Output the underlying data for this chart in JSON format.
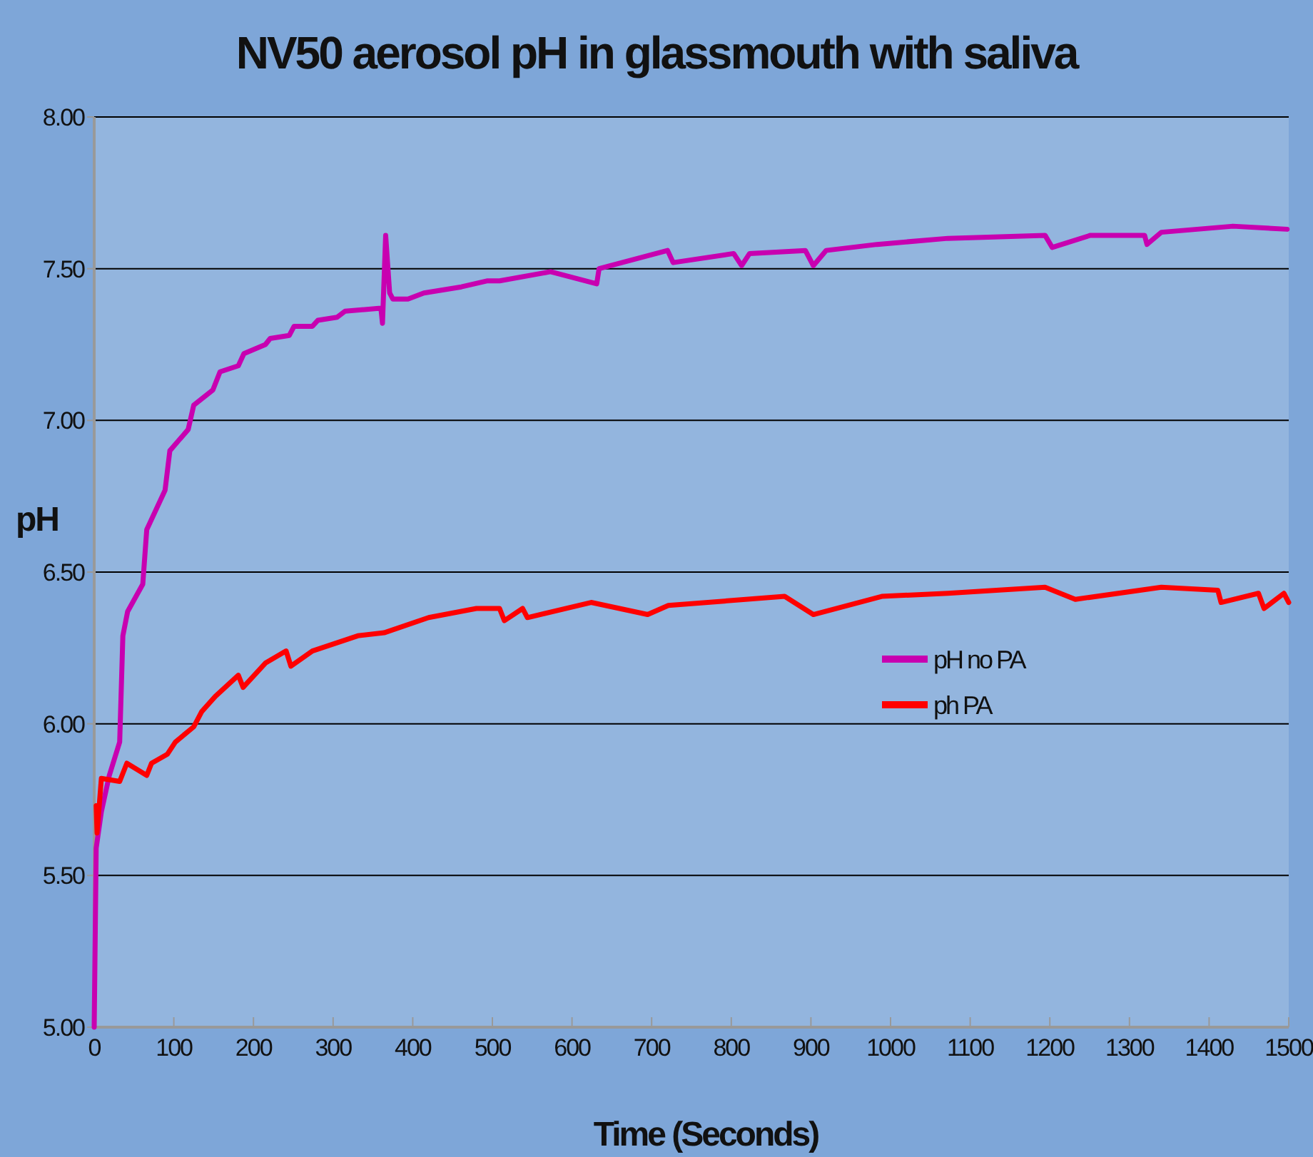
{
  "chart_data": {
    "type": "line",
    "title": "NV50 aerosol pH in glassmouth with saliva",
    "xlabel": "Time (Seconds)",
    "ylabel": "pH",
    "xlim": [
      0,
      1500
    ],
    "xticks": [
      0,
      100,
      200,
      300,
      400,
      500,
      600,
      700,
      800,
      900,
      1000,
      1100,
      1200,
      1300,
      1400,
      1500
    ],
    "ylim": [
      5,
      8
    ],
    "yticks": [
      {
        "value": 5,
        "label": "5.00"
      },
      {
        "value": 5.5,
        "label": "5.50"
      },
      {
        "value": 6,
        "label": "6.00"
      },
      {
        "value": 6.5,
        "label": "6.50"
      },
      {
        "value": 7,
        "label": "7.00"
      },
      {
        "value": 7.5,
        "label": "7.50"
      },
      {
        "value": 8,
        "label": "8.00"
      }
    ],
    "grid": "y",
    "legend": "right",
    "marker": "none",
    "line_style": "solid",
    "series": [
      {
        "name": "pH no PA",
        "color": "#c800b0",
        "x": [
          0,
          2.5,
          9,
          19,
          32,
          36,
          42,
          61,
          66,
          89,
          95,
          118,
          125,
          149,
          158,
          181,
          188,
          215,
          221,
          245,
          251,
          274,
          281,
          305,
          315,
          360,
          362,
          366,
          371,
          375,
          394,
          414,
          461,
          494,
          509,
          573,
          631,
          634,
          720,
          727,
          803,
          813,
          823,
          893,
          903,
          919,
          983,
          1072,
          1194,
          1203,
          1251,
          1319,
          1322,
          1340,
          1430,
          1498
        ],
        "values": [
          5.0,
          5.59,
          5.71,
          5.83,
          5.94,
          6.29,
          6.37,
          6.46,
          6.64,
          6.77,
          6.9,
          6.97,
          7.05,
          7.1,
          7.16,
          7.18,
          7.22,
          7.25,
          7.27,
          7.28,
          7.31,
          7.31,
          7.33,
          7.34,
          7.36,
          7.37,
          7.32,
          7.61,
          7.42,
          7.4,
          7.4,
          7.42,
          7.44,
          7.46,
          7.46,
          7.49,
          7.45,
          7.5,
          7.56,
          7.52,
          7.55,
          7.51,
          7.55,
          7.56,
          7.51,
          7.56,
          7.58,
          7.6,
          7.61,
          7.57,
          7.61,
          7.61,
          7.58,
          7.62,
          7.64,
          7.63
        ]
      },
      {
        "name": "ph PA",
        "color": "#ff0000",
        "x": [
          2.5,
          3.6,
          9,
          32,
          41,
          66,
          72,
          92,
          102,
          125,
          135,
          152,
          181,
          187,
          215,
          241,
          247,
          274,
          331,
          364,
          420,
          480,
          509,
          515,
          538,
          544,
          624,
          695,
          721,
          867,
          903,
          989,
          1072,
          1194,
          1232,
          1340,
          1411,
          1415,
          1462,
          1469,
          1494,
          1500
        ],
        "values": [
          5.73,
          5.64,
          5.82,
          5.81,
          5.87,
          5.83,
          5.87,
          5.9,
          5.94,
          5.99,
          6.04,
          6.09,
          6.16,
          6.12,
          6.2,
          6.24,
          6.19,
          6.24,
          6.29,
          6.3,
          6.35,
          6.38,
          6.38,
          6.34,
          6.38,
          6.35,
          6.4,
          6.36,
          6.39,
          6.42,
          6.36,
          6.42,
          6.43,
          6.45,
          6.41,
          6.45,
          6.44,
          6.4,
          6.43,
          6.38,
          6.43,
          6.4
        ]
      }
    ]
  }
}
